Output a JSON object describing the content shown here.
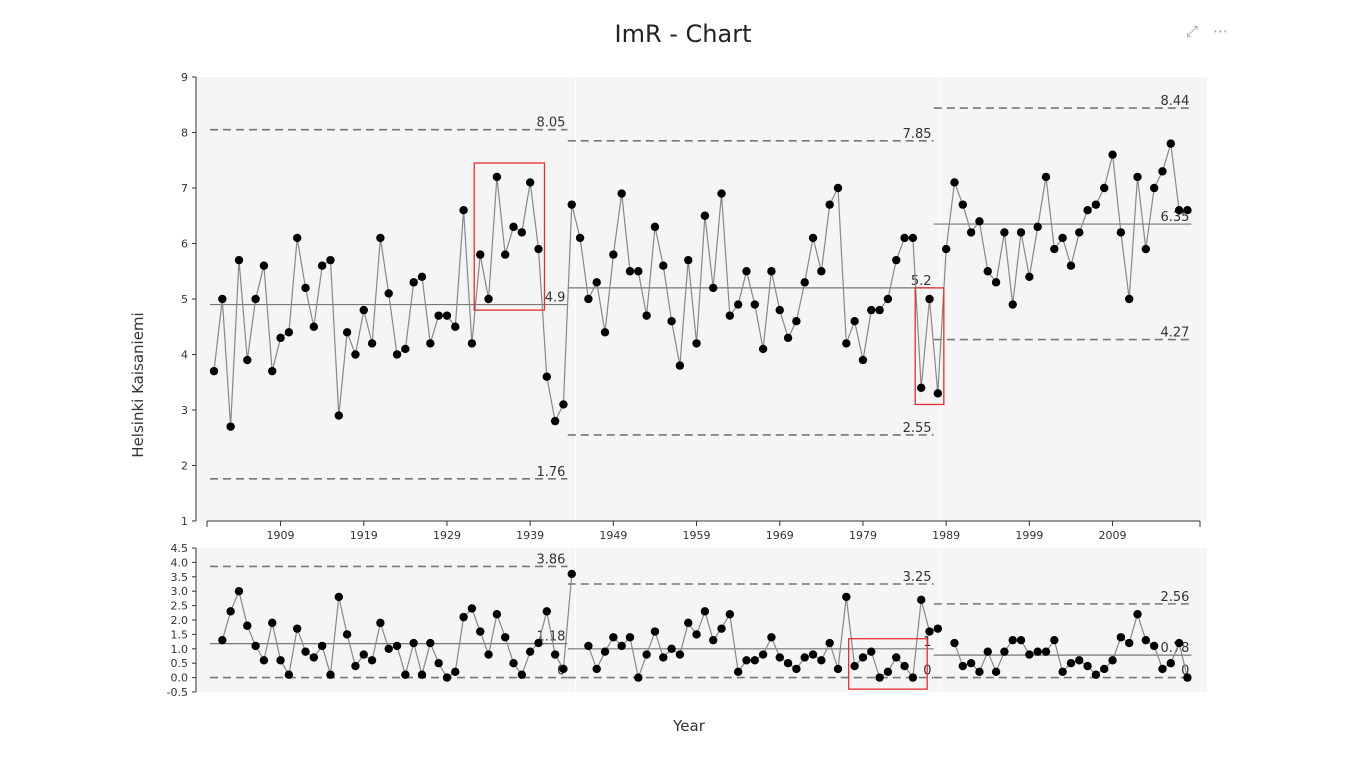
{
  "header": {
    "title": "ImR - Chart",
    "focus_icon": "focus-mode-icon",
    "more_icon": "more-options-icon"
  },
  "axes": {
    "ylabel": "Helsinki Kaisaniemi",
    "xlabel": "Year"
  },
  "colors": {
    "panel": "#f5f5f5",
    "line": "#888888",
    "marker": "#000000",
    "limit": "#777777",
    "highlight": "#e03030"
  },
  "chart_data": [
    {
      "type": "line",
      "name": "I chart",
      "x_start": 1901,
      "xticks": [
        1909,
        1919,
        1929,
        1939,
        1949,
        1959,
        1969,
        1979,
        1989,
        1999,
        2009
      ],
      "ylim": [
        1,
        9
      ],
      "yticks": [
        1,
        2,
        3,
        4,
        5,
        6,
        7,
        8,
        9
      ],
      "values": [
        3.7,
        5.0,
        2.7,
        5.7,
        3.9,
        5.0,
        5.6,
        3.7,
        4.3,
        4.4,
        6.1,
        5.2,
        4.5,
        5.6,
        5.7,
        2.9,
        4.4,
        4.0,
        4.8,
        4.2,
        6.1,
        5.1,
        4.0,
        4.1,
        5.3,
        5.4,
        4.2,
        4.7,
        4.7,
        4.5,
        6.6,
        4.2,
        5.8,
        5.0,
        7.2,
        5.8,
        6.3,
        6.2,
        7.1,
        5.9,
        3.6,
        2.8,
        3.1,
        6.7,
        6.1,
        5.0,
        5.3,
        4.4,
        5.8,
        6.9,
        5.5,
        5.5,
        4.7,
        6.3,
        5.6,
        4.6,
        3.8,
        5.7,
        4.2,
        6.5,
        5.2,
        6.9,
        4.7,
        4.9,
        5.5,
        4.9,
        4.1,
        5.5,
        4.8,
        4.3,
        4.6,
        5.3,
        6.1,
        5.5,
        6.7,
        7.0,
        4.2,
        4.6,
        3.9,
        4.8,
        4.8,
        5.0,
        5.7,
        6.1,
        6.1,
        3.4,
        5.0,
        3.3,
        5.9,
        7.1,
        6.7,
        6.2,
        6.4,
        5.5,
        5.3,
        6.2,
        4.9,
        6.2,
        5.4,
        6.3,
        7.2,
        5.9,
        6.1,
        5.6,
        6.2,
        6.6,
        6.7,
        7.0,
        7.6,
        6.2,
        5.0,
        7.2,
        5.9,
        7.0,
        7.3,
        7.8,
        6.6,
        6.6
      ],
      "segments": [
        {
          "x_range": [
            1901,
            1943
          ],
          "center": 4.9,
          "ucl": 8.05,
          "lcl": 1.76,
          "center_label": "4.9",
          "ucl_label": "8.05",
          "lcl_label": "1.76"
        },
        {
          "x_range": [
            1944,
            1987
          ],
          "center": 5.2,
          "ucl": 7.85,
          "lcl": 2.55,
          "center_label": "5.2",
          "ucl_label": "7.85",
          "lcl_label": "2.55"
        },
        {
          "x_range": [
            1988,
            2018
          ],
          "center": 6.35,
          "ucl": 8.44,
          "lcl": 4.27,
          "center_label": "6.35",
          "ucl_label": "8.44",
          "lcl_label": "4.27"
        }
      ],
      "highlights": [
        {
          "x_range": [
            1933,
            1940
          ],
          "y_range": [
            4.8,
            7.45
          ]
        },
        {
          "x_range": [
            1986,
            1988
          ],
          "y_range": [
            3.1,
            5.2
          ]
        }
      ]
    },
    {
      "type": "line",
      "name": "mR chart",
      "ylim": [
        -0.5,
        4.5
      ],
      "yticks": [
        -0.5,
        0.0,
        0.5,
        1.0,
        1.5,
        2.0,
        2.5,
        3.0,
        3.5,
        4.0,
        4.5
      ],
      "ytick_labels": [
        "-0.5",
        "0.0",
        "0.5",
        "1.0",
        "1.5",
        "2.0",
        "2.5",
        "3.0",
        "3.5",
        "4.0",
        "4.5"
      ],
      "values": [
        null,
        1.3,
        2.3,
        3.0,
        1.8,
        1.1,
        0.6,
        1.9,
        0.6,
        0.1,
        1.7,
        0.9,
        0.7,
        1.1,
        0.1,
        2.8,
        1.5,
        0.4,
        0.8,
        0.6,
        1.9,
        1.0,
        1.1,
        0.1,
        1.2,
        0.1,
        1.2,
        0.5,
        0.0,
        0.2,
        2.1,
        2.4,
        1.6,
        0.8,
        2.2,
        1.4,
        0.5,
        0.1,
        0.9,
        1.2,
        2.3,
        0.8,
        0.3,
        3.6,
        null,
        1.1,
        0.3,
        0.9,
        1.4,
        1.1,
        1.4,
        0.0,
        0.8,
        1.6,
        0.7,
        1.0,
        0.8,
        1.9,
        1.5,
        2.3,
        1.3,
        1.7,
        2.2,
        0.2,
        0.6,
        0.6,
        0.8,
        1.4,
        0.7,
        0.5,
        0.3,
        0.7,
        0.8,
        0.6,
        1.2,
        0.3,
        2.8,
        0.4,
        0.7,
        0.9,
        0.0,
        0.2,
        0.7,
        0.4,
        0.0,
        2.7,
        1.6,
        1.7,
        null,
        1.2,
        0.4,
        0.5,
        0.2,
        0.9,
        0.2,
        0.9,
        1.3,
        1.3,
        0.8,
        0.9,
        0.9,
        1.3,
        0.2,
        0.5,
        0.6,
        0.4,
        0.1,
        0.3,
        0.6,
        1.4,
        1.2,
        2.2,
        1.3,
        1.1,
        0.3,
        0.5,
        1.2,
        0.0
      ],
      "segments": [
        {
          "x_range": [
            1901,
            1943
          ],
          "center": 1.18,
          "ucl": 3.86,
          "lcl": 0,
          "center_label": "1.18",
          "ucl_label": "3.86",
          "lcl_label": "0"
        },
        {
          "x_range": [
            1944,
            1987
          ],
          "center": 1.0,
          "ucl": 3.25,
          "lcl": 0,
          "center_label": "1",
          "ucl_label": "3.25",
          "lcl_label": "0"
        },
        {
          "x_range": [
            1988,
            2018
          ],
          "center": 0.78,
          "ucl": 2.56,
          "lcl": 0,
          "center_label": "0.78",
          "ucl_label": "2.56",
          "lcl_label": "0"
        }
      ],
      "highlights": [
        {
          "x_range": [
            1978,
            1986
          ],
          "y_range": [
            -0.4,
            1.35
          ]
        }
      ]
    }
  ]
}
